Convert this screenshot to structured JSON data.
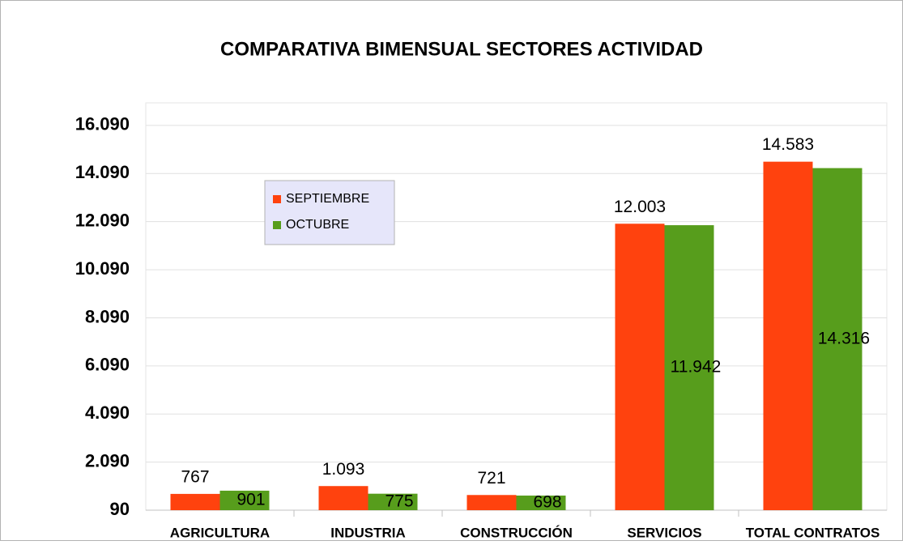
{
  "chart_data": {
    "type": "bar",
    "title": "COMPARATIVA BIMENSUAL SECTORES ACTIVIDAD",
    "categories": [
      "AGRICULTURA",
      "INDUSTRIA",
      "CONSTRUCCIÓN",
      "SERVICIOS",
      "TOTAL CONTRATOS"
    ],
    "series": [
      {
        "name": "SEPTIEMBRE",
        "color": "#ff420e",
        "values": [
          767,
          1093,
          721,
          12003,
          14583
        ],
        "value_labels": [
          "767",
          "1.093",
          "721",
          "12.003",
          "14.583"
        ]
      },
      {
        "name": "OCTUBRE",
        "color": "#579d1c",
        "values": [
          901,
          775,
          698,
          11942,
          14316
        ],
        "value_labels": [
          "901",
          "775",
          "698",
          "11.942",
          "14.316"
        ]
      }
    ],
    "ylim": [
      90,
      17030
    ],
    "yticks": [
      {
        "value": 90,
        "label": "90"
      },
      {
        "value": 2090,
        "label": "2.090"
      },
      {
        "value": 4090,
        "label": "4.090"
      },
      {
        "value": 6090,
        "label": "6.090"
      },
      {
        "value": 8090,
        "label": "8.090"
      },
      {
        "value": 10090,
        "label": "10.090"
      },
      {
        "value": 12090,
        "label": "12.090"
      },
      {
        "value": 14090,
        "label": "14.090"
      },
      {
        "value": 16090,
        "label": "16.090"
      }
    ],
    "grid": true,
    "legend": "upper left"
  }
}
